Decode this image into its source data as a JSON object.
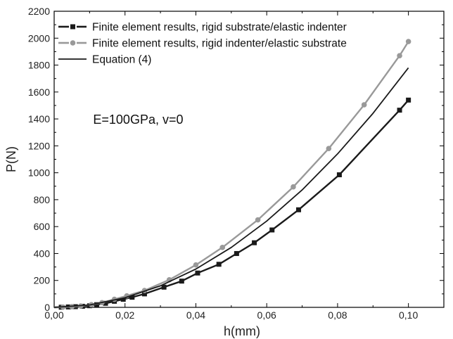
{
  "chart_data": {
    "type": "line",
    "xlabel": "h(mm)",
    "ylabel": "P(N)",
    "xlim": [
      0,
      0.11
    ],
    "ylim": [
      0,
      2200
    ],
    "xticks": [
      "0,00",
      "0,02",
      "0,04",
      "0,06",
      "0,08",
      "0,10"
    ],
    "xtick_values": [
      0,
      0.02,
      0.04,
      0.06,
      0.08,
      0.1
    ],
    "yticks": [
      "0",
      "200",
      "400",
      "600",
      "800",
      "1000",
      "1200",
      "1400",
      "1600",
      "1800",
      "2000",
      "2200"
    ],
    "ytick_values": [
      0,
      200,
      400,
      600,
      800,
      1000,
      1200,
      1400,
      1600,
      1800,
      2000,
      2200
    ],
    "annotation": "E=100GPa, v=0",
    "legend_position": "top-left",
    "series": [
      {
        "name": "Finite element results, rigid substrate/elastic indenter",
        "color": "#1a1a1a",
        "line": "dashed-solid",
        "marker": "square",
        "x": [
          0.0,
          0.002,
          0.004,
          0.006,
          0.008,
          0.01,
          0.012,
          0.0145,
          0.017,
          0.0195,
          0.022,
          0.0255,
          0.031,
          0.036,
          0.0405,
          0.0465,
          0.0515,
          0.0565,
          0.0615,
          0.069,
          0.0805,
          0.0975,
          0.1
        ],
        "y": [
          0,
          1,
          3,
          5,
          8,
          12,
          20,
          30,
          45,
          60,
          75,
          100,
          150,
          195,
          255,
          320,
          400,
          480,
          575,
          725,
          985,
          1465,
          1540
        ]
      },
      {
        "name": "Finite element results, rigid indenter/elastic substrate",
        "color": "#999999",
        "line": "dashed-solid",
        "marker": "circle",
        "x": [
          0.0,
          0.0025,
          0.005,
          0.0075,
          0.0105,
          0.0135,
          0.017,
          0.0205,
          0.0255,
          0.0325,
          0.04,
          0.0475,
          0.0575,
          0.0675,
          0.0775,
          0.0875,
          0.0975,
          0.1
        ],
        "y": [
          0,
          2,
          5,
          10,
          20,
          35,
          60,
          85,
          125,
          205,
          315,
          445,
          650,
          895,
          1180,
          1505,
          1870,
          1975
        ]
      },
      {
        "name": "Equation (4)",
        "color": "#1a1a1a",
        "line": "solid",
        "marker": "none",
        "x": [
          0.0,
          0.01,
          0.02,
          0.03,
          0.04,
          0.05,
          0.06,
          0.07,
          0.08,
          0.09,
          0.1
        ],
        "y": [
          0,
          18,
          71,
          160,
          285,
          445,
          641,
          872,
          1140,
          1442,
          1780
        ]
      }
    ]
  }
}
